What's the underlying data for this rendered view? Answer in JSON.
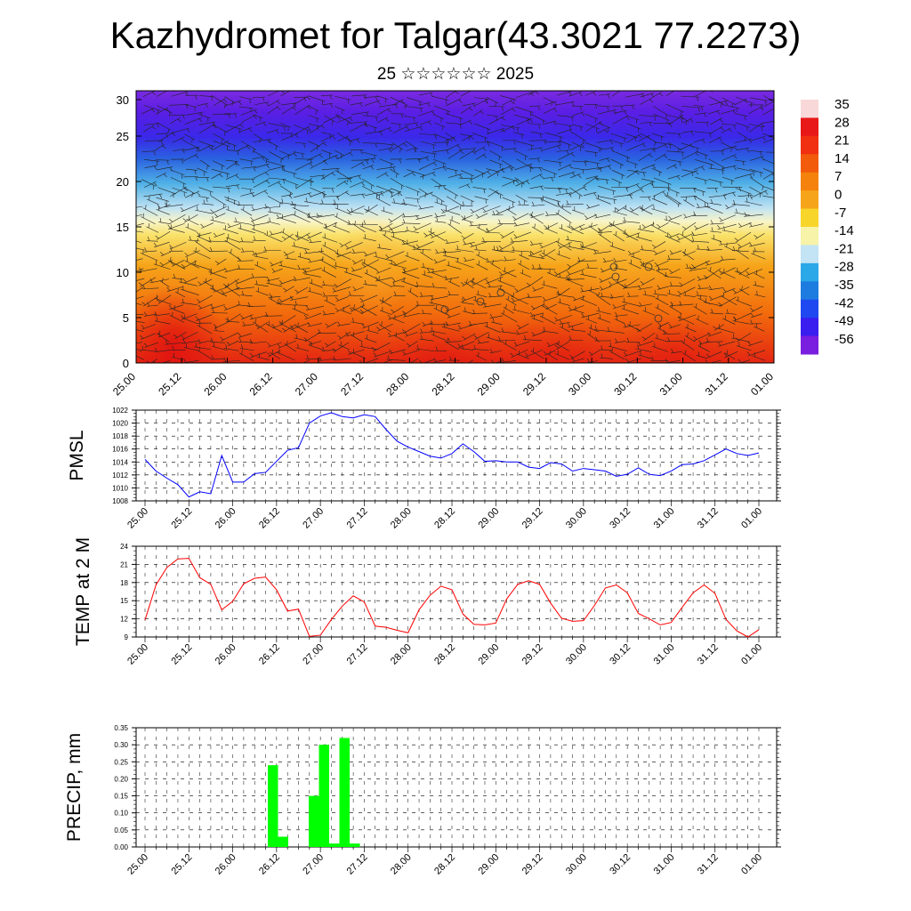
{
  "header": {
    "title": "Kazhydromet for Talgar(43.3021 77.2273)",
    "subtitle": "25 ☆☆☆☆☆☆ 2025"
  },
  "chart_data": [
    {
      "type": "heatmap",
      "ylim": [
        0,
        30
      ],
      "yticks": [
        "0",
        "5",
        "10",
        "15",
        "20",
        "25",
        "30"
      ],
      "xticks": [
        "25.00",
        "25.12",
        "26.00",
        "26.12",
        "27.00",
        "27.12",
        "28.00",
        "28.12",
        "29.00",
        "29.12",
        "30.00",
        "30.12",
        "31.00",
        "31.12",
        "01.00"
      ],
      "colorbar": {
        "labels": [
          "35",
          "28",
          "21",
          "14",
          "7",
          "0",
          "-7",
          "-14",
          "-21",
          "-28",
          "-35",
          "-42",
          "-49",
          "-56"
        ],
        "stops": [
          "#f8d8d8",
          "#e81818",
          "#f03010",
          "#f25a0c",
          "#f5820c",
          "#f6a51a",
          "#f8d52a",
          "#f7f3a8",
          "#c2e4f4",
          "#2aa8e8",
          "#1e7ce0",
          "#2048f0",
          "#3a1ef0",
          "#7a1ee0"
        ]
      },
      "overlay": "wind barbs"
    },
    {
      "type": "line",
      "ylabel": "PMSL",
      "ylim": [
        1008,
        1022
      ],
      "yticks": [
        "1008",
        "1010",
        "1012",
        "1014",
        "1016",
        "1018",
        "1020",
        "1022"
      ],
      "xticks": [
        "25.00",
        "25.12",
        "26.00",
        "26.12",
        "27.00",
        "27.12",
        "28.00",
        "28.12",
        "29.00",
        "29.12",
        "30.00",
        "30.12",
        "31.00",
        "31.12",
        "01.00"
      ],
      "color": "#0000ff",
      "values": [
        1014.4,
        1012.6,
        1011.5,
        1010.5,
        1008.6,
        1009.4,
        1009.1,
        1015.0,
        1010.9,
        1010.9,
        1012.2,
        1012.4,
        1014.1,
        1015.8,
        1016.2,
        1020.0,
        1021.1,
        1021.6,
        1021.0,
        1020.8,
        1021.3,
        1021.0,
        1019.0,
        1017.2,
        1016.3,
        1015.6,
        1014.9,
        1014.6,
        1015.3,
        1016.8,
        1015.6,
        1014.1,
        1014.2,
        1014.0,
        1014.0,
        1013.2,
        1013.0,
        1013.9,
        1013.7,
        1012.6,
        1013.0,
        1012.8,
        1012.6,
        1011.8,
        1012.1,
        1013.1,
        1012.1,
        1011.9,
        1012.6,
        1013.6,
        1013.7,
        1014.2,
        1015.1,
        1016.0,
        1015.3,
        1015.0,
        1015.4
      ]
    },
    {
      "type": "line",
      "ylabel": "TEMP at 2 M",
      "ylim": [
        9,
        24
      ],
      "yticks": [
        "9",
        "12",
        "15",
        "18",
        "21",
        "24"
      ],
      "xticks": [
        "25.00",
        "25.12",
        "26.00",
        "26.12",
        "27.00",
        "27.12",
        "28.00",
        "28.12",
        "29.00",
        "29.12",
        "30.00",
        "30.12",
        "31.00",
        "31.12",
        "01.00"
      ],
      "color": "#ff0000",
      "values": [
        11.8,
        17.6,
        20.5,
        21.9,
        22.0,
        18.8,
        17.7,
        13.5,
        14.9,
        17.8,
        18.7,
        18.9,
        16.8,
        13.3,
        13.6,
        9.1,
        9.3,
        11.9,
        14.1,
        15.8,
        14.8,
        10.8,
        10.6,
        10.1,
        9.7,
        13.5,
        15.9,
        17.4,
        16.8,
        12.8,
        11.1,
        11.0,
        11.3,
        15.3,
        17.7,
        18.3,
        17.7,
        14.6,
        12.1,
        11.6,
        11.7,
        14.2,
        17.1,
        17.6,
        16.3,
        12.9,
        12.0,
        11.0,
        11.4,
        13.9,
        16.3,
        17.6,
        16.2,
        11.9,
        10.0,
        9.0,
        10.2
      ]
    },
    {
      "type": "bar",
      "ylabel": "PRECIP, mm",
      "ylim": [
        0,
        0.35
      ],
      "yticks": [
        "0.00",
        "0.05",
        "0.10",
        "0.15",
        "0.20",
        "0.25",
        "0.30",
        "0.35"
      ],
      "xticks": [
        "25.00",
        "25.12",
        "26.00",
        "26.12",
        "27.00",
        "27.12",
        "28.00",
        "28.12",
        "29.00",
        "29.12",
        "30.00",
        "30.12",
        "31.00",
        "31.12",
        "01.00"
      ],
      "color": "#00ff00",
      "values": [
        0,
        0,
        0,
        0,
        0,
        0,
        0,
        0,
        0,
        0,
        0,
        0,
        0.24,
        0.03,
        0,
        0,
        0.15,
        0.3,
        0.01,
        0.32,
        0.01,
        0,
        0,
        0,
        0,
        0,
        0,
        0,
        0,
        0,
        0,
        0,
        0,
        0,
        0,
        0,
        0,
        0,
        0,
        0,
        0,
        0,
        0,
        0,
        0,
        0,
        0,
        0,
        0,
        0,
        0,
        0,
        0,
        0,
        0,
        0,
        0,
        0,
        0,
        0,
        0
      ]
    }
  ]
}
